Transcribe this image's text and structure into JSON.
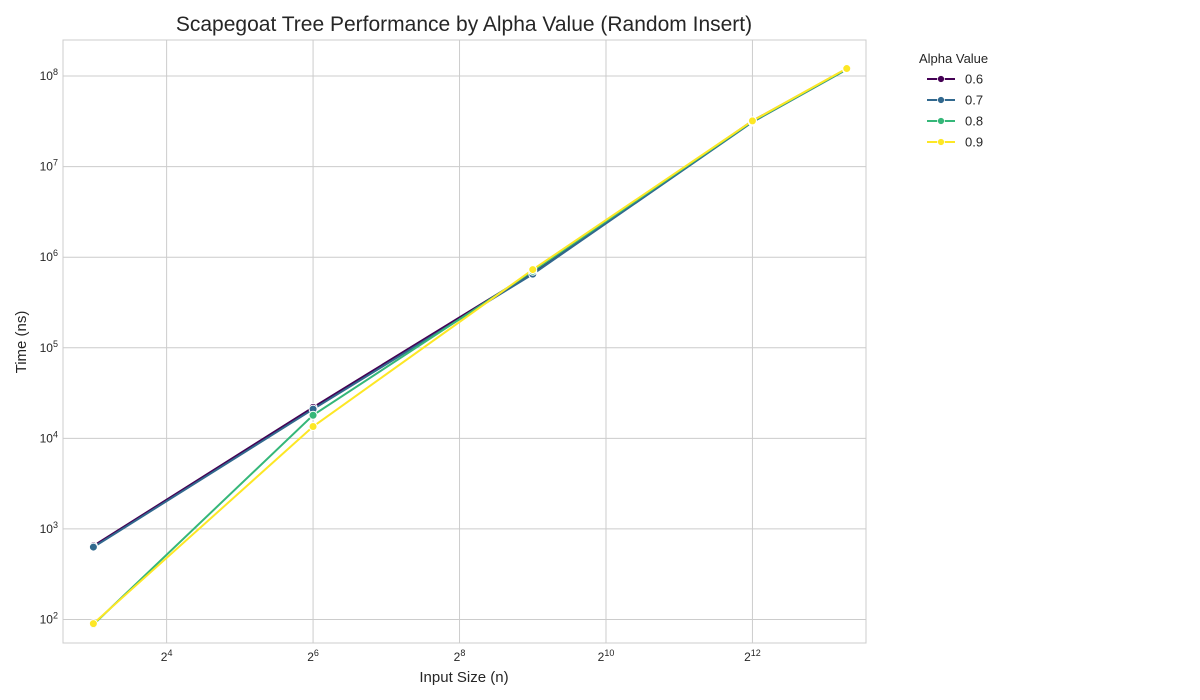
{
  "chart_data": {
    "type": "line",
    "title": "Scapegoat Tree Performance by Alpha Value (Random Insert)",
    "xlabel": "Input Size (n)",
    "ylabel": "Time (ns)",
    "x_scale": "log2",
    "y_scale": "log10",
    "xlim": [
      6,
      12000
    ],
    "ylim": [
      55,
      250000000
    ],
    "x_ticks": [
      {
        "value": 16,
        "base": "2",
        "exp": "4"
      },
      {
        "value": 64,
        "base": "2",
        "exp": "6"
      },
      {
        "value": 256,
        "base": "2",
        "exp": "8"
      },
      {
        "value": 1024,
        "base": "2",
        "exp": "10"
      },
      {
        "value": 4096,
        "base": "2",
        "exp": "12"
      }
    ],
    "y_ticks": [
      {
        "value": 100,
        "base": "10",
        "exp": "2"
      },
      {
        "value": 1000,
        "base": "10",
        "exp": "3"
      },
      {
        "value": 10000,
        "base": "10",
        "exp": "4"
      },
      {
        "value": 100000,
        "base": "10",
        "exp": "5"
      },
      {
        "value": 1000000,
        "base": "10",
        "exp": "6"
      },
      {
        "value": 10000000,
        "base": "10",
        "exp": "7"
      },
      {
        "value": 100000000,
        "base": "10",
        "exp": "8"
      }
    ],
    "grid": true,
    "legend": {
      "title": "Alpha Value",
      "placement": "outside-right"
    },
    "x": [
      8,
      64,
      512,
      4096,
      10000
    ],
    "series": [
      {
        "name": "0.6",
        "color": "#440154",
        "values": [
          650,
          22000,
          680000,
          32000000,
          120000000
        ]
      },
      {
        "name": "0.7",
        "color": "#31688e",
        "values": [
          630,
          21000,
          650000,
          31000000,
          118000000
        ]
      },
      {
        "name": "0.8",
        "color": "#35b779",
        "values": [
          88,
          18000,
          700000,
          31500000,
          119000000
        ]
      },
      {
        "name": "0.9",
        "color": "#fde725",
        "values": [
          90,
          13500,
          730000,
          32000000,
          121000000
        ]
      }
    ]
  }
}
